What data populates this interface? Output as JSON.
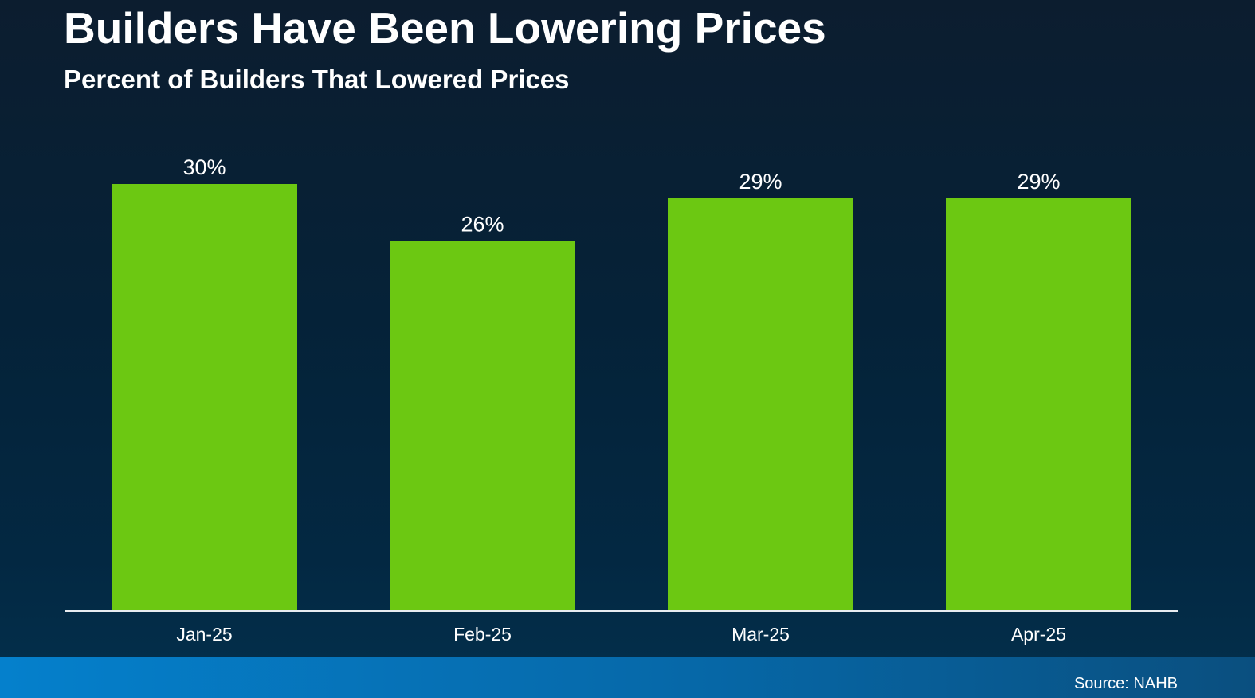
{
  "chart_data": {
    "type": "bar",
    "title": "Builders Have Been Lowering Prices",
    "subtitle": "Percent of Builders That Lowered Prices",
    "categories": [
      "Jan-25",
      "Feb-25",
      "Mar-25",
      "Apr-25"
    ],
    "values": [
      30,
      26,
      29,
      29
    ],
    "value_labels": [
      "30%",
      "26%",
      "29%",
      "29%"
    ],
    "unit": "%",
    "ylim": [
      0,
      30
    ],
    "grid": false,
    "legend": "none",
    "bar_color": "#6cc812"
  },
  "footer": {
    "source": "Source: NAHB"
  },
  "colors": {
    "text": "#ffffff",
    "axis_line": "#e8ecf0"
  }
}
